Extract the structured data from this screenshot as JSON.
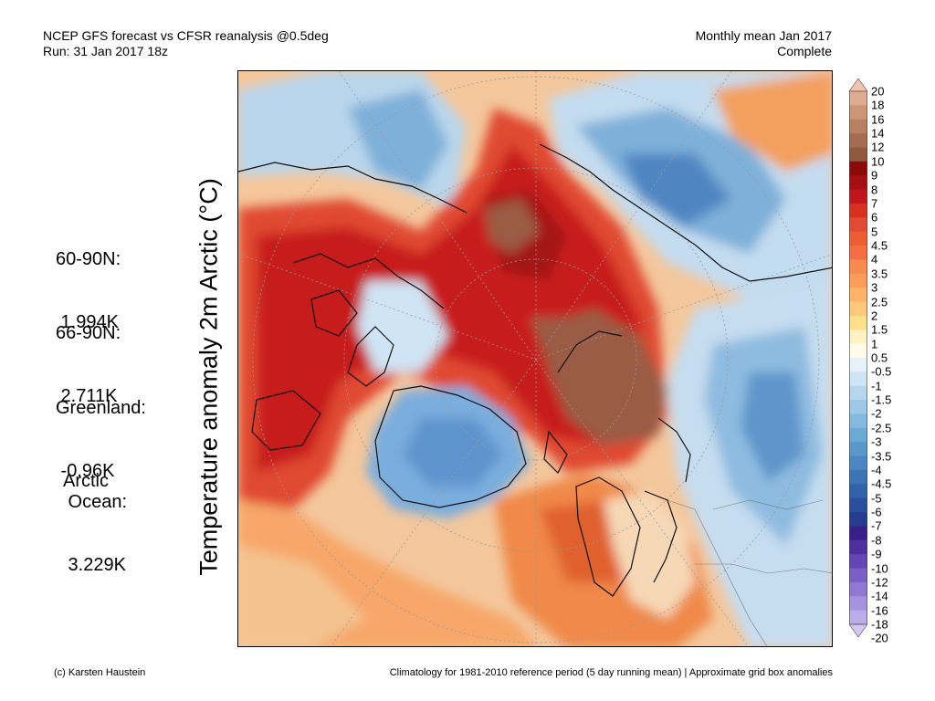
{
  "header": {
    "title": "NCEP GFS forecast vs CFSR reanalysis @0.5deg",
    "run": "Run: 31 Jan 2017 18z",
    "period": "Monthly mean Jan 2017",
    "status": "Complete"
  },
  "axis_label": "Temperature anomaly 2m Arctic (°C)",
  "stats": [
    {
      "label": "60-90N:",
      "value": " 1.994K"
    },
    {
      "label": "66-90N:",
      "value": " 2.711K"
    },
    {
      "label": "Greenland:",
      "value": " -0.96K"
    },
    {
      "label": "Arctic\n Ocean:",
      "value": " 3.229K"
    }
  ],
  "colorbar": {
    "labels": [
      "20",
      "18",
      "16",
      "14",
      "12",
      "10",
      "9",
      "8",
      "7",
      "6",
      "5",
      "4.5",
      "4",
      "3.5",
      "3",
      "2.5",
      "2",
      "1.5",
      "1",
      "0.5",
      "-0.5",
      "-1",
      "-1.5",
      "-2",
      "-2.5",
      "-3",
      "-3.5",
      "-4",
      "-4.5",
      "-5",
      "-6",
      "-7",
      "-8",
      "-9",
      "-10",
      "-12",
      "-14",
      "-16",
      "-18",
      "-20"
    ],
    "colors": [
      "#f2c4b0",
      "#deac90",
      "#cc9676",
      "#b87f61",
      "#a66c4f",
      "#8f5a40",
      "#8c0a0a",
      "#a50f15",
      "#c0161b",
      "#d7301f",
      "#e34a33",
      "#ec5d32",
      "#f46d43",
      "#f88a4e",
      "#fb9d59",
      "#fdb366",
      "#fec87a",
      "#fee08b",
      "#fff2c2",
      "#fefbea",
      "#e7f1fa",
      "#cfe4f4",
      "#b6d6ee",
      "#9dc8e7",
      "#85b9df",
      "#6caad6",
      "#5a98cc",
      "#4a86c1",
      "#3c74b6",
      "#3262ab",
      "#2a4f9c",
      "#243d8e",
      "#3a1f8a",
      "#4e2fa0",
      "#6445b5",
      "#7a5fc6",
      "#9078d3",
      "#a692df",
      "#bcabe9",
      "#d3c6f2"
    ]
  },
  "footer": {
    "credit": "(c) Karsten Haustein",
    "note": "Climatology for 1981-2010 reference period (5 day running mean) | Approximate grid box anomalies"
  }
}
